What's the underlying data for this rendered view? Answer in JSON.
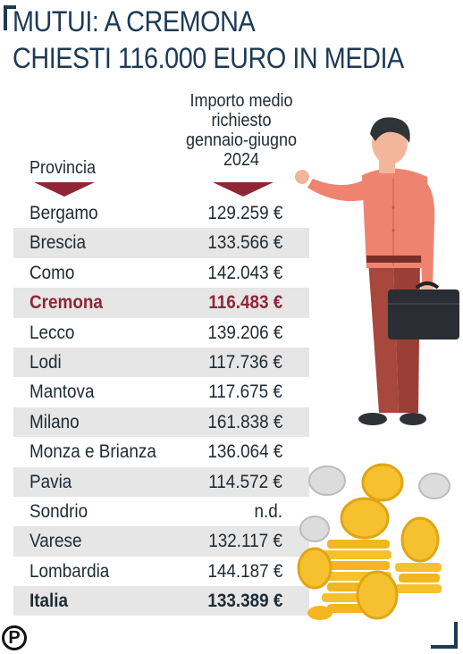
{
  "title": {
    "line1": "MUTUI: A CREMONA",
    "line2": "CHIESTI 116.000 EURO IN MEDIA"
  },
  "columns": {
    "province": "Provincia",
    "value_lines": [
      "Importo medio",
      "richiesto",
      "gennaio-giugno",
      "2024"
    ]
  },
  "logo_letter": "P",
  "colors": {
    "title": "#1d3a55",
    "highlight": "#8f2636",
    "row_shade": "#e6e6e6"
  },
  "chart_data": {
    "type": "table",
    "title": "MUTUI: A CREMONA CHIESTI 116.000 EURO IN MEDIA",
    "columns": [
      "Provincia",
      "Importo medio richiesto gennaio-giugno 2024"
    ],
    "rows": [
      {
        "name": "Bergamo",
        "value": 129259,
        "label": "129.259 €"
      },
      {
        "name": "Brescia",
        "value": 133566,
        "label": "133.566 €"
      },
      {
        "name": "Como",
        "value": 142043,
        "label": "142.043 €"
      },
      {
        "name": "Cremona",
        "value": 116483,
        "label": "116.483 €",
        "highlight": true
      },
      {
        "name": "Lecco",
        "value": 139206,
        "label": "139.206 €"
      },
      {
        "name": "Lodi",
        "value": 117736,
        "label": "117.736 €"
      },
      {
        "name": "Mantova",
        "value": 117675,
        "label": "117.675 €"
      },
      {
        "name": "Milano",
        "value": 161838,
        "label": "161.838 €"
      },
      {
        "name": "Monza e Brianza",
        "value": 136064,
        "label": "136.064 €"
      },
      {
        "name": "Pavia",
        "value": 114572,
        "label": "114.572 €"
      },
      {
        "name": "Sondrio",
        "value": null,
        "label": "n.d."
      },
      {
        "name": "Varese",
        "value": 132117,
        "label": "132.117 €"
      },
      {
        "name": "Lombardia",
        "value": 144187,
        "label": "144.187 €"
      },
      {
        "name": "Italia",
        "value": 133389,
        "label": "133.389 €",
        "total": true
      }
    ]
  }
}
